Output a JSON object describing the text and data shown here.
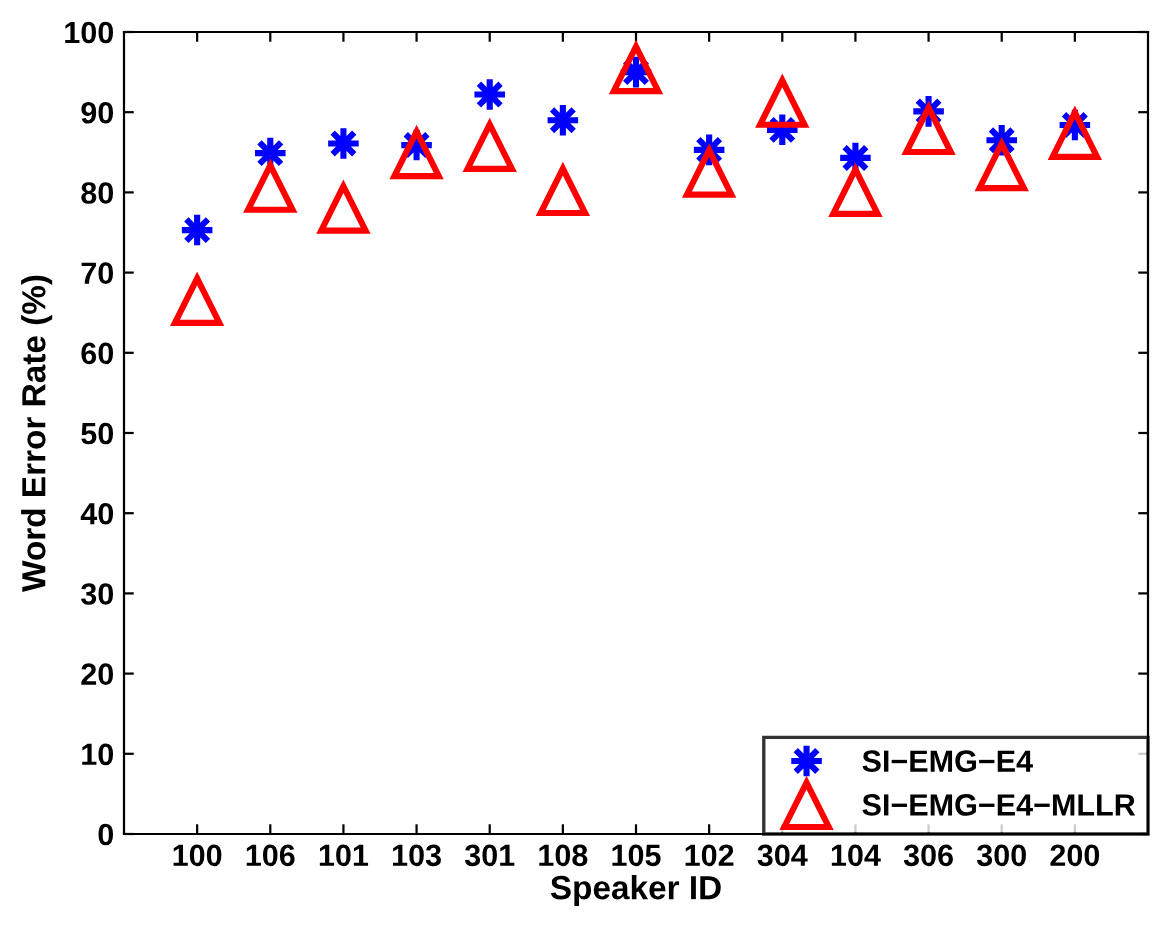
{
  "chart_data": {
    "type": "scatter",
    "xlabel": "Speaker ID",
    "ylabel": "Word Error Rate (%)",
    "categories": [
      "100",
      "106",
      "101",
      "103",
      "301",
      "108",
      "105",
      "102",
      "304",
      "104",
      "306",
      "300",
      "200"
    ],
    "series": [
      {
        "name": "SI−EMG−E4",
        "color": "#0000ff",
        "marker": "cross",
        "values": [
          75.3,
          84.9,
          86.1,
          85.9,
          92.2,
          89.0,
          95.0,
          85.3,
          87.8,
          84.3,
          90.1,
          86.5,
          88.4
        ]
      },
      {
        "name": "SI−EMG−E4−MLLR",
        "color": "#ff0000",
        "marker": "triangle",
        "values": [
          66.5,
          80.6,
          78.0,
          84.8,
          85.7,
          80.2,
          95.4,
          82.5,
          91.2,
          80.1,
          87.8,
          83.3,
          87.2
        ]
      }
    ],
    "ylim": [
      0,
      100
    ],
    "yticks": [
      0,
      10,
      20,
      30,
      40,
      50,
      60,
      70,
      80,
      90,
      100
    ],
    "grid": false,
    "legend": "bottom right"
  }
}
